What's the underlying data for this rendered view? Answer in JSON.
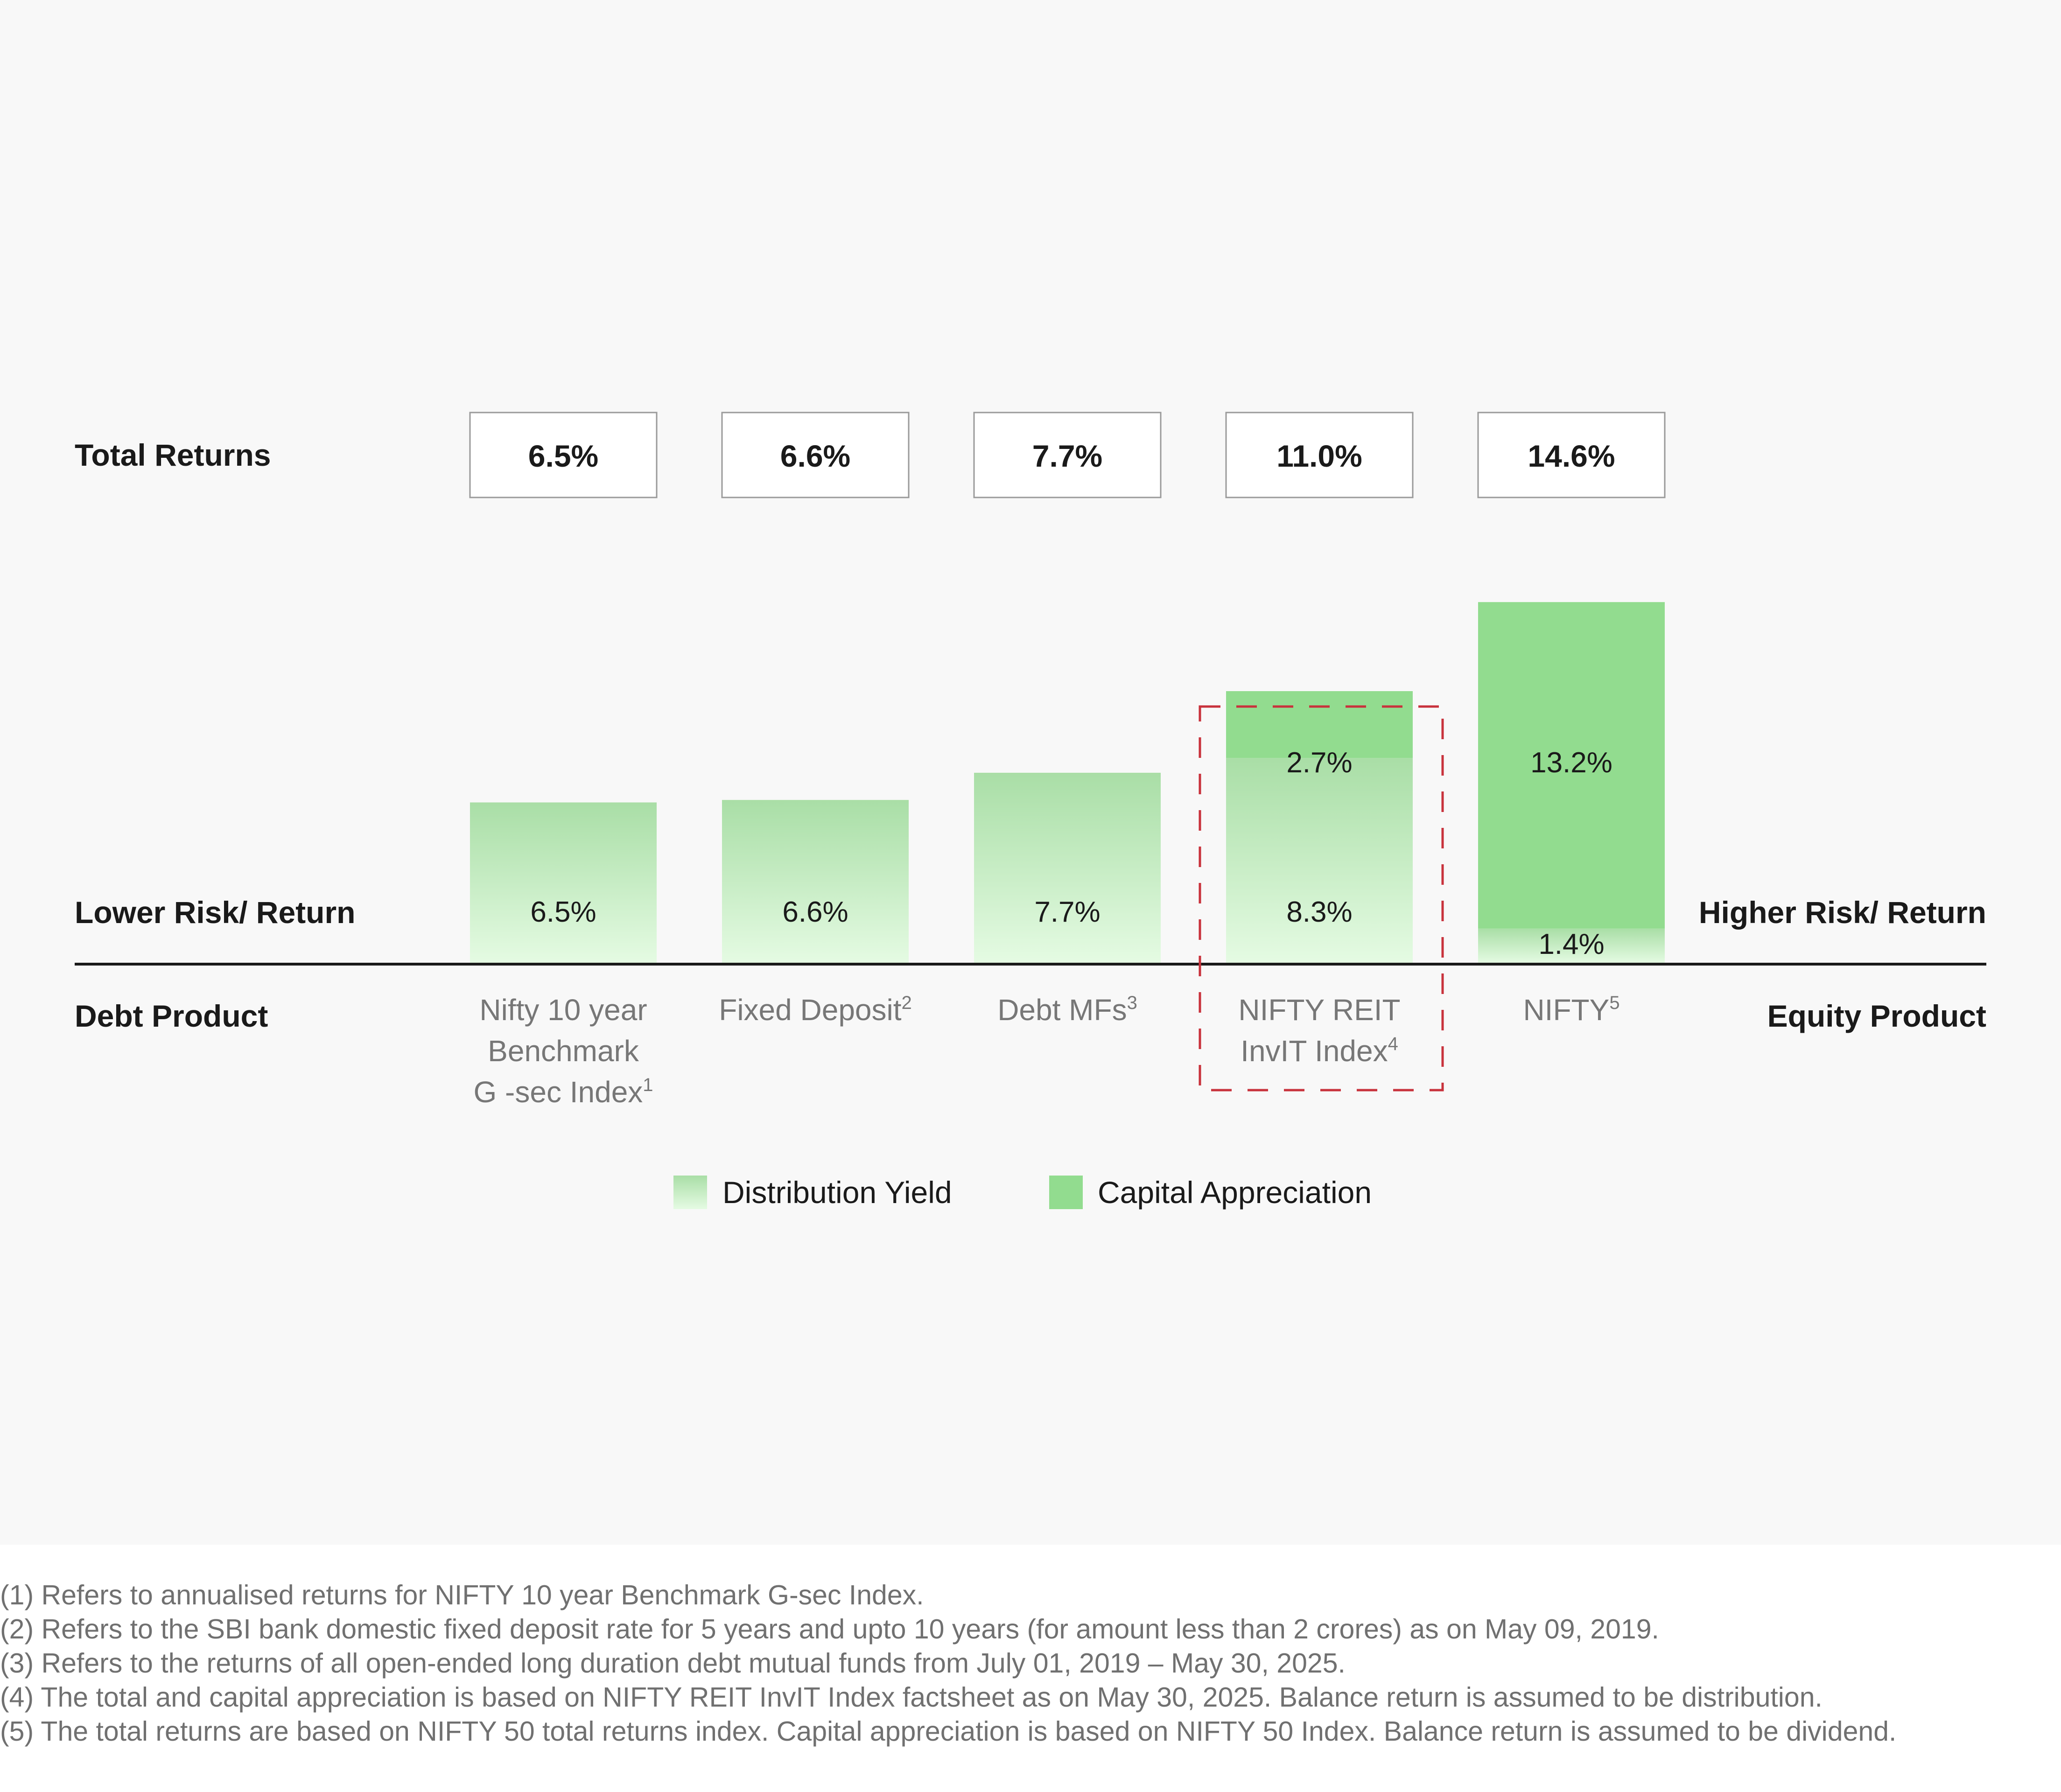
{
  "chart_data": {
    "type": "bar",
    "stacked": true,
    "total_returns_label": "Total Returns",
    "left_risk_label": "Lower Risk/ Return",
    "right_risk_label": "Higher Risk/ Return",
    "left_axis_label": "Debt Product",
    "right_axis_label": "Equity Product",
    "categories": [
      {
        "name": "Nifty 10 year\nBenchmark\nG -sec Index",
        "sup": "1"
      },
      {
        "name": "Fixed Deposit",
        "sup": "2"
      },
      {
        "name": "Debt MFs",
        "sup": "3"
      },
      {
        "name": "NIFTY REIT\nInvIT Index",
        "sup": "4"
      },
      {
        "name": "NIFTY",
        "sup": "5"
      }
    ],
    "total_returns": [
      "6.5%",
      "6.6%",
      "7.7%",
      "11.0%",
      "14.6%"
    ],
    "series": [
      {
        "name": "Distribution Yield",
        "values": [
          6.5,
          6.6,
          7.7,
          8.3,
          1.4
        ],
        "labels": [
          "6.5%",
          "6.6%",
          "7.7%",
          "8.3%",
          "1.4%"
        ]
      },
      {
        "name": "Capital Appreciation",
        "values": [
          0,
          0,
          0,
          2.7,
          13.2
        ],
        "labels": [
          "",
          "",
          "",
          "2.7%",
          "13.2%"
        ]
      }
    ],
    "highlight_category_index": 3,
    "legend_position": "bottom",
    "colors": {
      "capital_appreciation": "#92dc8f",
      "distribution_top": "#a9dea6",
      "distribution_bottom": "#e5fbe3",
      "highlight_border": "#c8323c",
      "axis": "#1a1a1a",
      "category_text": "#777777",
      "label_text": "#1a1a1a"
    }
  },
  "footnotes": [
    "(1) Refers to annualised returns for NIFTY 10 year Benchmark G-sec Index.",
    "(2) Refers to the SBI bank domestic fixed deposit rate for 5 years and upto 10 years (for amount less than   2 crores) as on May 09, 2019.",
    "(3) Refers to the returns of all open-ended long duration debt mutual funds from July 01, 2019 – May 30, 2025.",
    "(4) The total and capital appreciation is based on NIFTY REIT InvIT Index factsheet as on May 30, 2025. Balance return is assumed to be distribution.",
    "(5) The total returns are based on NIFTY 50 total returns index. Capital appreciation is based on NIFTY 50 Index. Balance return is assumed to be dividend."
  ]
}
